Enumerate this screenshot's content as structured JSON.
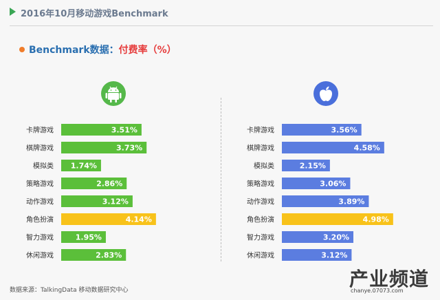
{
  "header": {
    "title": "2016年10月移动游戏Benchmark"
  },
  "subtitle": {
    "label": "Benchmark数据：",
    "metric": "付费率（%）"
  },
  "footer": {
    "source": "数据来源：TalkingData 移动数据研究中心"
  },
  "watermark": {
    "text": "产业频道",
    "url": "chanye.07073.com"
  },
  "colors": {
    "android_bar": "#5bbf3a",
    "ios_bar": "#5b7de0",
    "highlight_bar": "#f8c21a",
    "android_icon": "#55b84a",
    "ios_icon": "#4a6fdb"
  },
  "chart_data": [
    {
      "type": "bar",
      "platform_icon": "android-icon",
      "categories": [
        "卡牌游戏",
        "棋牌游戏",
        "模拟类",
        "策略游戏",
        "动作游戏",
        "角色扮演",
        "智力游戏",
        "休闲游戏"
      ],
      "values": [
        3.51,
        3.73,
        1.74,
        2.86,
        3.12,
        4.14,
        1.95,
        2.83
      ],
      "labels": [
        "3.51%",
        "3.73%",
        "1.74%",
        "2.86%",
        "3.12%",
        "4.14%",
        "1.95%",
        "2.83%"
      ],
      "highlight": "角色扮演",
      "orientation": "horizontal",
      "grid": false
    },
    {
      "type": "bar",
      "platform_icon": "apple-icon",
      "categories": [
        "卡牌游戏",
        "棋牌游戏",
        "模拟类",
        "策略游戏",
        "动作游戏",
        "角色扮演",
        "智力游戏",
        "休闲游戏"
      ],
      "values": [
        3.56,
        4.58,
        2.15,
        3.06,
        3.89,
        4.98,
        3.2,
        3.12
      ],
      "labels": [
        "3.56%",
        "4.58%",
        "2.15%",
        "3.06%",
        "3.89%",
        "4.98%",
        "3.20%",
        "3.12%"
      ],
      "highlight": "角色扮演",
      "orientation": "horizontal",
      "grid": false
    }
  ]
}
